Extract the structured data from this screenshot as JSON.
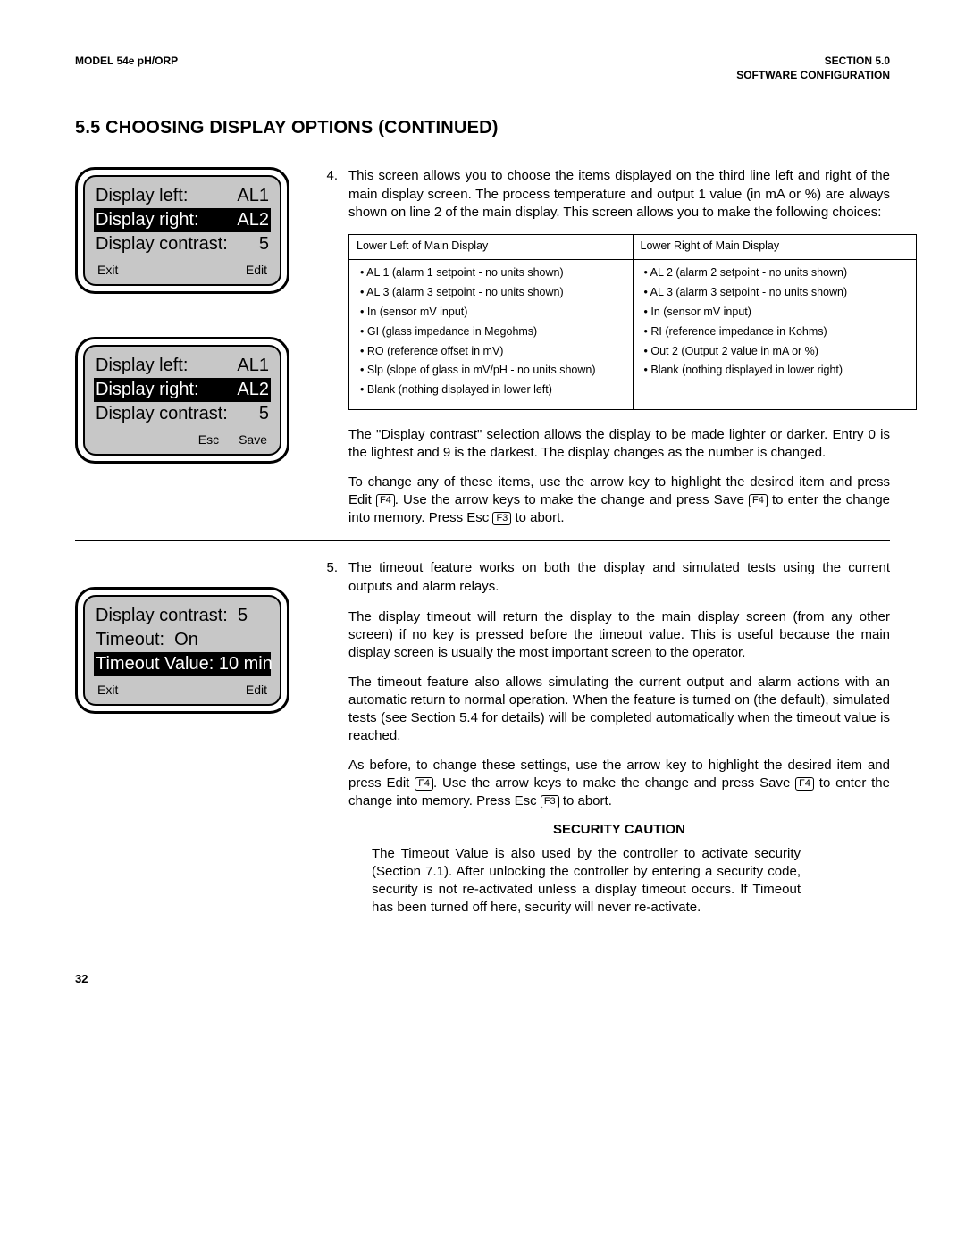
{
  "header": {
    "left": "MODEL 54e pH/ORP",
    "right1": "SECTION 5.0",
    "right2": "SOFTWARE CONFIGURATION"
  },
  "title": "5.5 CHOOSING DISPLAY OPTIONS (CONTINUED)",
  "lcd1": {
    "line1_label": "Display left:",
    "line1_val": "AL1",
    "line2_label": "Display right:",
    "line2_val": "AL2",
    "line3_label": "Display contrast:",
    "line3_val": "5",
    "btn_left": "Exit",
    "btn_right": "Edit"
  },
  "lcd2": {
    "line1_label": "Display left:",
    "line1_val": "AL1",
    "line2_label": "Display right:",
    "line2_val": "AL2",
    "line3_label": "Display contrast:",
    "line3_val": "5",
    "btn_left": "Esc",
    "btn_right": "Save"
  },
  "lcd3": {
    "line1": "Display contrast:  5",
    "line2": "Timeout:  On",
    "line3": "Timeout Value: 10 min",
    "btn_left": "Exit",
    "btn_right": "Edit"
  },
  "step4": {
    "num": "4.",
    "intro": "This screen allows you to choose the items displayed on the third line left and right of the main display screen. The process temperature and output 1 value (in mA or %) are always shown on line 2 of the main display. This screen allows you to make the following choices:",
    "table": {
      "head_left": "Lower Left of Main Display",
      "head_right": "Lower Right of Main Display",
      "left": [
        "AL 1 (alarm 1 setpoint - no units shown)",
        "AL 3 (alarm 3 setpoint - no units shown)",
        "In (sensor mV input)",
        "GI (glass impedance in Megohms)",
        "RO (reference offset in mV)",
        "Slp (slope of glass in mV/pH - no units shown)",
        "Blank (nothing displayed in lower left)"
      ],
      "right": [
        "AL 2 (alarm 2 setpoint - no units shown)",
        "AL 3 (alarm 3 setpoint - no units shown)",
        "In (sensor mV input)",
        "RI (reference impedance in Kohms)",
        "Out 2 (Output 2 value in mA  or %)",
        "Blank (nothing displayed in lower right)"
      ]
    },
    "p1": "The \"Display contrast\" selection allows the display to be made lighter or darker. Entry 0 is the lightest and 9 is the darkest. The display changes as the number is changed.",
    "p2a": "To change any of these items, use the arrow key to highlight the desired item and press Edit ",
    "p2b": ". Use the arrow keys to make the change and press Save ",
    "p2c": " to enter the change into memory.  Press Esc ",
    "p2d": " to abort.",
    "key_f4": "F4",
    "key_f3": "F3"
  },
  "step5": {
    "num": "5.",
    "p1": "The timeout feature works on both the display and simulated tests using the current outputs and alarm relays.",
    "p2": "The display timeout will return the display to the main display screen (from any other screen) if no key is pressed before the timeout value. This is useful because the main display screen is usually the most important screen to the operator.",
    "p3": "The timeout feature also allows simulating the current output and alarm actions with an automatic return to normal operation.  When the feature is turned on (the default), simulated tests (see Section 5.4 for details) will be completed automatically when the timeout value is reached.",
    "p4a": "As before, to change these settings, use the arrow key to highlight the desired item and press Edit ",
    "p4b": ". Use the arrow keys to make the change and press Save ",
    "p4c": " to enter the change into memory. Press Esc ",
    "p4d": " to abort.",
    "key_f4": "F4",
    "key_f3": "F3",
    "caution_title": "SECURITY CAUTION",
    "caution": "The Timeout Value is also used by the controller to activate security (Section 7.1).  After unlocking the controller by entering a security code, security is not re-activated unless a display timeout occurs. If Timeout has been turned off here, security will never re-activate."
  },
  "page_num": "32"
}
